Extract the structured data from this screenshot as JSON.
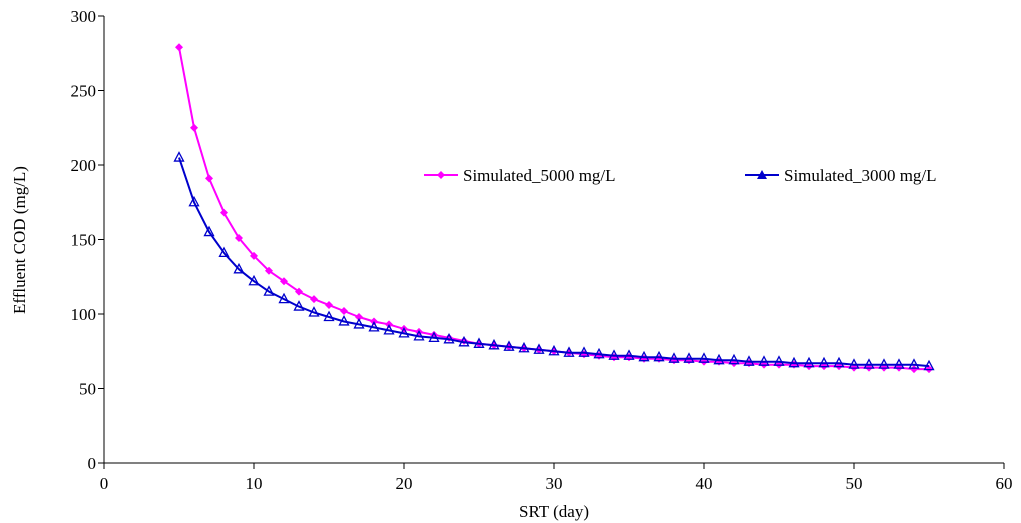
{
  "chart_data": {
    "type": "line",
    "title": "",
    "xlabel": "SRT (day)",
    "ylabel": "Effluent COD (mg/L)",
    "xlim": [
      0,
      60
    ],
    "ylim": [
      0,
      300
    ],
    "x_ticks": [
      0,
      10,
      20,
      30,
      40,
      50,
      60
    ],
    "y_ticks": [
      0,
      50,
      100,
      150,
      200,
      250,
      300
    ],
    "grid": false,
    "legend_position": "right-middle",
    "x": [
      5,
      6,
      7,
      8,
      9,
      10,
      11,
      12,
      13,
      14,
      15,
      16,
      17,
      18,
      19,
      20,
      21,
      22,
      23,
      24,
      25,
      26,
      27,
      28,
      29,
      30,
      31,
      32,
      33,
      34,
      35,
      36,
      37,
      38,
      39,
      40,
      41,
      42,
      43,
      44,
      45,
      46,
      47,
      48,
      49,
      50,
      51,
      52,
      53,
      54,
      55
    ],
    "series": [
      {
        "name": "Simulated_5000 mg/L",
        "color": "#ff00ff",
        "marker": "diamond",
        "values": [
          279,
          225,
          191,
          168,
          151,
          139,
          129,
          122,
          115,
          110,
          106,
          102,
          98,
          95,
          93,
          90,
          88,
          86,
          84,
          82,
          80,
          79,
          78,
          77,
          76,
          75,
          74,
          73,
          72,
          71,
          71,
          70,
          70,
          69,
          69,
          68,
          68,
          67,
          67,
          66,
          66,
          66,
          65,
          65,
          65,
          64,
          64,
          64,
          64,
          63,
          63
        ]
      },
      {
        "name": "Simulated_3000 mg/L",
        "color": "#0000cc",
        "marker": "triangle",
        "values": [
          205,
          175,
          155,
          141,
          130,
          122,
          115,
          110,
          105,
          101,
          98,
          95,
          93,
          91,
          89,
          87,
          85,
          84,
          83,
          81,
          80,
          79,
          78,
          77,
          76,
          75,
          74,
          74,
          73,
          72,
          72,
          71,
          71,
          70,
          70,
          70,
          69,
          69,
          68,
          68,
          68,
          67,
          67,
          67,
          67,
          66,
          66,
          66,
          66,
          66,
          65
        ]
      }
    ]
  }
}
